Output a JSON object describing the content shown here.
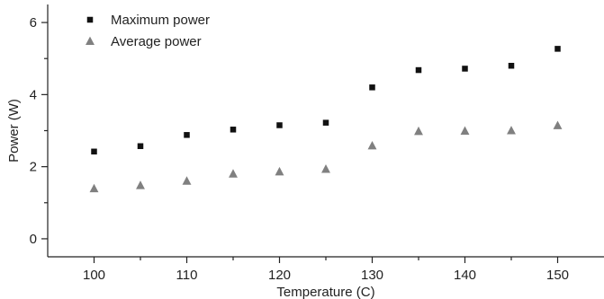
{
  "chart_data": {
    "type": "scatter",
    "xlabel": "Temperature (C)",
    "ylabel": "Power (W)",
    "xlim": [
      95,
      155
    ],
    "ylim": [
      -0.5,
      6.5
    ],
    "x_ticks": [
      100,
      105,
      110,
      115,
      120,
      125,
      130,
      135,
      140,
      145,
      150
    ],
    "x_tick_labels": [
      "100",
      "110",
      "120",
      "130",
      "140",
      "150"
    ],
    "y_ticks": [
      0,
      1,
      2,
      3,
      4,
      5,
      6
    ],
    "y_tick_labels": [
      "0",
      "2",
      "4",
      "6"
    ],
    "grid": false,
    "legend_position": "top-left",
    "x": [
      100,
      105,
      110,
      115,
      120,
      125,
      130,
      135,
      140,
      145,
      150
    ],
    "series": [
      {
        "name": "Maximum power",
        "marker": "square",
        "color": "#111111",
        "values": [
          2.42,
          2.57,
          2.88,
          3.03,
          3.15,
          3.22,
          4.2,
          4.68,
          4.72,
          4.8,
          5.27
        ]
      },
      {
        "name": "Average power",
        "marker": "triangle",
        "color": "#808080",
        "values": [
          1.39,
          1.48,
          1.6,
          1.8,
          1.86,
          1.93,
          2.58,
          2.98,
          2.99,
          3.0,
          3.14
        ]
      }
    ]
  }
}
